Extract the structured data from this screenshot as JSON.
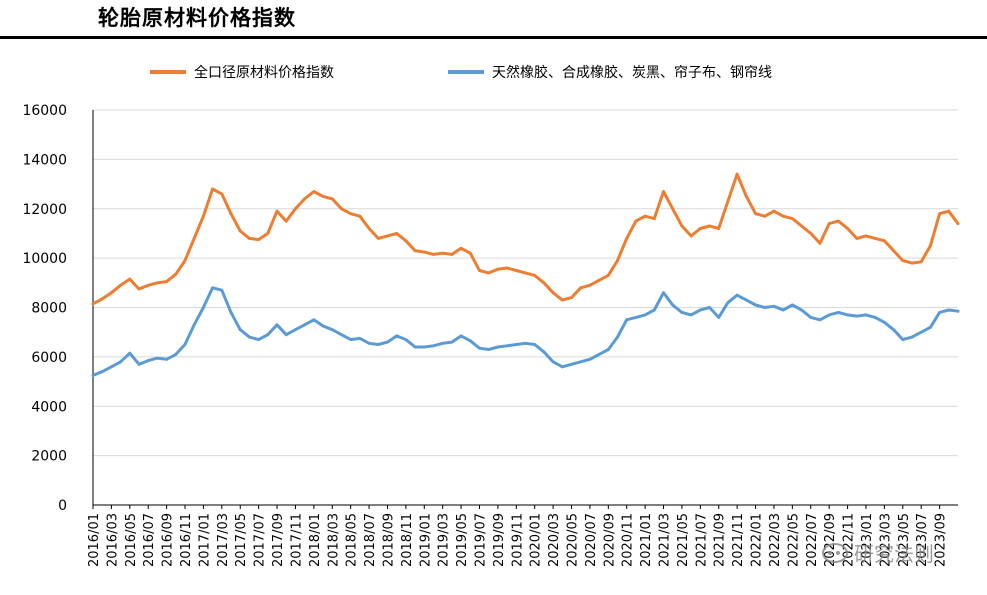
{
  "page": {
    "title": "轮胎原材料价格指数"
  },
  "watermark": {
    "text": "研究法则"
  },
  "colors": {
    "orange": "#ED7D31",
    "blue": "#5B9BD5",
    "grid": "#D9D9D9",
    "axis": "#000000"
  },
  "chart_data": {
    "type": "line",
    "title": "",
    "xlabel": "",
    "ylabel": "",
    "ylim": [
      0,
      16000
    ],
    "yticks": [
      0,
      2000,
      4000,
      6000,
      8000,
      10000,
      12000,
      14000,
      16000
    ],
    "grid": true,
    "legend_position": "top",
    "x_start": "2016/01",
    "x_end": "2023/11",
    "xticks": [
      "2016/01",
      "2016/03",
      "2016/05",
      "2016/07",
      "2016/09",
      "2016/11",
      "2017/01",
      "2017/03",
      "2017/05",
      "2017/07",
      "2017/09",
      "2017/11",
      "2018/01",
      "2018/03",
      "2018/05",
      "2018/07",
      "2018/09",
      "2018/11",
      "2019/01",
      "2019/03",
      "2019/05",
      "2019/07",
      "2019/09",
      "2019/11",
      "2020/01",
      "2020/03",
      "2020/05",
      "2020/07",
      "2020/09",
      "2020/11",
      "2021/01",
      "2021/03",
      "2021/05",
      "2021/07",
      "2021/09",
      "2021/11",
      "2022/01",
      "2022/03",
      "2022/05",
      "2022/07",
      "2022/09",
      "2022/11",
      "2023/01",
      "2023/03",
      "2023/05",
      "2023/07",
      "2023/09"
    ],
    "series": [
      {
        "name": "全口径原材料价格指数",
        "color": "#ED7D31",
        "points": [
          [
            "2016/01",
            8150
          ],
          [
            "2016/02",
            8350
          ],
          [
            "2016/03",
            8600
          ],
          [
            "2016/04",
            8900
          ],
          [
            "2016/05",
            9150
          ],
          [
            "2016/06",
            8750
          ],
          [
            "2016/07",
            8900
          ],
          [
            "2016/08",
            9000
          ],
          [
            "2016/09",
            9050
          ],
          [
            "2016/10",
            9350
          ],
          [
            "2016/11",
            9900
          ],
          [
            "2016/12",
            10800
          ],
          [
            "2017/01",
            11700
          ],
          [
            "2017/02",
            12800
          ],
          [
            "2017/03",
            12600
          ],
          [
            "2017/04",
            11800
          ],
          [
            "2017/05",
            11100
          ],
          [
            "2017/06",
            10800
          ],
          [
            "2017/07",
            10750
          ],
          [
            "2017/08",
            11000
          ],
          [
            "2017/09",
            11900
          ],
          [
            "2017/10",
            11500
          ],
          [
            "2017/11",
            12000
          ],
          [
            "2017/12",
            12400
          ],
          [
            "2018/01",
            12700
          ],
          [
            "2018/02",
            12500
          ],
          [
            "2018/03",
            12400
          ],
          [
            "2018/04",
            12000
          ],
          [
            "2018/05",
            11800
          ],
          [
            "2018/06",
            11700
          ],
          [
            "2018/07",
            11200
          ],
          [
            "2018/08",
            10800
          ],
          [
            "2018/09",
            10900
          ],
          [
            "2018/10",
            11000
          ],
          [
            "2018/11",
            10700
          ],
          [
            "2018/12",
            10300
          ],
          [
            "2019/01",
            10250
          ],
          [
            "2019/02",
            10150
          ],
          [
            "2019/03",
            10200
          ],
          [
            "2019/04",
            10150
          ],
          [
            "2019/05",
            10400
          ],
          [
            "2019/06",
            10200
          ],
          [
            "2019/07",
            9500
          ],
          [
            "2019/08",
            9400
          ],
          [
            "2019/09",
            9550
          ],
          [
            "2019/10",
            9600
          ],
          [
            "2019/11",
            9500
          ],
          [
            "2019/12",
            9400
          ],
          [
            "2020/01",
            9300
          ],
          [
            "2020/02",
            9000
          ],
          [
            "2020/03",
            8600
          ],
          [
            "2020/04",
            8300
          ],
          [
            "2020/05",
            8400
          ],
          [
            "2020/06",
            8800
          ],
          [
            "2020/07",
            8900
          ],
          [
            "2020/08",
            9100
          ],
          [
            "2020/09",
            9300
          ],
          [
            "2020/10",
            9900
          ],
          [
            "2020/11",
            10800
          ],
          [
            "2020/12",
            11500
          ],
          [
            "2021/01",
            11700
          ],
          [
            "2021/02",
            11600
          ],
          [
            "2021/03",
            12700
          ],
          [
            "2021/04",
            12000
          ],
          [
            "2021/05",
            11300
          ],
          [
            "2021/06",
            10900
          ],
          [
            "2021/07",
            11200
          ],
          [
            "2021/08",
            11300
          ],
          [
            "2021/09",
            11200
          ],
          [
            "2021/10",
            12300
          ],
          [
            "2021/11",
            13400
          ],
          [
            "2021/12",
            12500
          ],
          [
            "2022/01",
            11800
          ],
          [
            "2022/02",
            11700
          ],
          [
            "2022/03",
            11900
          ],
          [
            "2022/04",
            11700
          ],
          [
            "2022/05",
            11600
          ],
          [
            "2022/06",
            11300
          ],
          [
            "2022/07",
            11000
          ],
          [
            "2022/08",
            10600
          ],
          [
            "2022/09",
            11400
          ],
          [
            "2022/10",
            11500
          ],
          [
            "2022/11",
            11200
          ],
          [
            "2022/12",
            10800
          ],
          [
            "2023/01",
            10900
          ],
          [
            "2023/02",
            10800
          ],
          [
            "2023/03",
            10700
          ],
          [
            "2023/04",
            10300
          ],
          [
            "2023/05",
            9900
          ],
          [
            "2023/06",
            9800
          ],
          [
            "2023/07",
            9850
          ],
          [
            "2023/08",
            10500
          ],
          [
            "2023/09",
            11800
          ],
          [
            "2023/10",
            11900
          ],
          [
            "2023/11",
            11400
          ]
        ]
      },
      {
        "name": "天然橡胶、合成橡胶、炭黑、帘子布、钢帘线",
        "color": "#5B9BD5",
        "points": [
          [
            "2016/01",
            5250
          ],
          [
            "2016/02",
            5400
          ],
          [
            "2016/03",
            5600
          ],
          [
            "2016/04",
            5800
          ],
          [
            "2016/05",
            6150
          ],
          [
            "2016/06",
            5700
          ],
          [
            "2016/07",
            5850
          ],
          [
            "2016/08",
            5950
          ],
          [
            "2016/09",
            5900
          ],
          [
            "2016/10",
            6100
          ],
          [
            "2016/11",
            6500
          ],
          [
            "2016/12",
            7300
          ],
          [
            "2017/01",
            8000
          ],
          [
            "2017/02",
            8800
          ],
          [
            "2017/03",
            8700
          ],
          [
            "2017/04",
            7800
          ],
          [
            "2017/05",
            7100
          ],
          [
            "2017/06",
            6800
          ],
          [
            "2017/07",
            6700
          ],
          [
            "2017/08",
            6900
          ],
          [
            "2017/09",
            7300
          ],
          [
            "2017/10",
            6900
          ],
          [
            "2017/11",
            7100
          ],
          [
            "2017/12",
            7300
          ],
          [
            "2018/01",
            7500
          ],
          [
            "2018/02",
            7250
          ],
          [
            "2018/03",
            7100
          ],
          [
            "2018/04",
            6900
          ],
          [
            "2018/05",
            6700
          ],
          [
            "2018/06",
            6750
          ],
          [
            "2018/07",
            6550
          ],
          [
            "2018/08",
            6500
          ],
          [
            "2018/09",
            6600
          ],
          [
            "2018/10",
            6850
          ],
          [
            "2018/11",
            6700
          ],
          [
            "2018/12",
            6400
          ],
          [
            "2019/01",
            6400
          ],
          [
            "2019/02",
            6450
          ],
          [
            "2019/03",
            6550
          ],
          [
            "2019/04",
            6600
          ],
          [
            "2019/05",
            6850
          ],
          [
            "2019/06",
            6650
          ],
          [
            "2019/07",
            6350
          ],
          [
            "2019/08",
            6300
          ],
          [
            "2019/09",
            6400
          ],
          [
            "2019/10",
            6450
          ],
          [
            "2019/11",
            6500
          ],
          [
            "2019/12",
            6550
          ],
          [
            "2020/01",
            6500
          ],
          [
            "2020/02",
            6200
          ],
          [
            "2020/03",
            5800
          ],
          [
            "2020/04",
            5600
          ],
          [
            "2020/05",
            5700
          ],
          [
            "2020/06",
            5800
          ],
          [
            "2020/07",
            5900
          ],
          [
            "2020/08",
            6100
          ],
          [
            "2020/09",
            6300
          ],
          [
            "2020/10",
            6800
          ],
          [
            "2020/11",
            7500
          ],
          [
            "2020/12",
            7600
          ],
          [
            "2021/01",
            7700
          ],
          [
            "2021/02",
            7900
          ],
          [
            "2021/03",
            8600
          ],
          [
            "2021/04",
            8100
          ],
          [
            "2021/05",
            7800
          ],
          [
            "2021/06",
            7700
          ],
          [
            "2021/07",
            7900
          ],
          [
            "2021/08",
            8000
          ],
          [
            "2021/09",
            7600
          ],
          [
            "2021/10",
            8200
          ],
          [
            "2021/11",
            8500
          ],
          [
            "2021/12",
            8300
          ],
          [
            "2022/01",
            8100
          ],
          [
            "2022/02",
            8000
          ],
          [
            "2022/03",
            8050
          ],
          [
            "2022/04",
            7900
          ],
          [
            "2022/05",
            8100
          ],
          [
            "2022/06",
            7900
          ],
          [
            "2022/07",
            7600
          ],
          [
            "2022/08",
            7500
          ],
          [
            "2022/09",
            7700
          ],
          [
            "2022/10",
            7800
          ],
          [
            "2022/11",
            7700
          ],
          [
            "2022/12",
            7650
          ],
          [
            "2023/01",
            7700
          ],
          [
            "2023/02",
            7600
          ],
          [
            "2023/03",
            7400
          ],
          [
            "2023/04",
            7100
          ],
          [
            "2023/05",
            6700
          ],
          [
            "2023/06",
            6800
          ],
          [
            "2023/07",
            7000
          ],
          [
            "2023/08",
            7200
          ],
          [
            "2023/09",
            7800
          ],
          [
            "2023/10",
            7900
          ],
          [
            "2023/11",
            7850
          ]
        ]
      }
    ]
  }
}
